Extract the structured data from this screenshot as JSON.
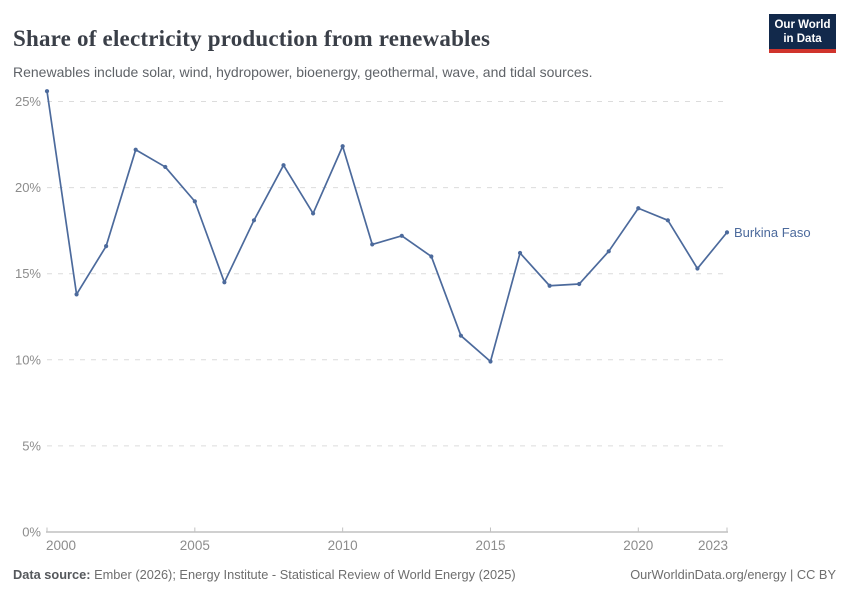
{
  "header": {
    "title": "Share of electricity production from renewables",
    "subtitle": "Renewables include solar, wind, hydropower, bioenergy, geothermal, wave, and tidal sources.",
    "logo": {
      "line1": "Our World",
      "line2": "in Data",
      "bg_color": "#12294b",
      "stripe_color": "#d0342c"
    }
  },
  "chart_data": {
    "type": "line",
    "title": "Share of electricity production from renewables",
    "xlabel": "",
    "ylabel": "",
    "xlim": [
      2000,
      2023
    ],
    "ylim": [
      0,
      26
    ],
    "grid": "horizontal-dashed",
    "legend_position": "end-of-line-label",
    "x_ticks": [
      2000,
      2005,
      2010,
      2015,
      2020,
      2023
    ],
    "y_ticks": [
      0,
      5,
      10,
      15,
      20,
      25
    ],
    "y_tick_labels": [
      "0%",
      "5%",
      "10%",
      "15%",
      "20%",
      "25%"
    ],
    "x": [
      2000,
      2001,
      2002,
      2003,
      2004,
      2005,
      2006,
      2007,
      2008,
      2009,
      2010,
      2011,
      2012,
      2013,
      2014,
      2015,
      2016,
      2017,
      2018,
      2019,
      2020,
      2021,
      2022,
      2023
    ],
    "series": [
      {
        "name": "Burkina Faso",
        "color": "#4c6a9c",
        "values": [
          25.6,
          13.8,
          16.6,
          22.2,
          21.2,
          19.2,
          14.5,
          18.1,
          21.3,
          18.5,
          22.4,
          16.7,
          17.2,
          16.0,
          11.4,
          9.9,
          16.2,
          14.3,
          14.4,
          16.3,
          18.8,
          18.1,
          15.3,
          17.4
        ]
      }
    ],
    "colors": {
      "gridline": "#dcdcdc",
      "axis_line": "#a0a0a0",
      "axis_tick": "#c2c2c2",
      "tick_label": "#8c8c8c"
    }
  },
  "footer": {
    "datasource_label": "Data source:",
    "datasource_text": " Ember (2026); Energy Institute - Statistical Review of World Energy (2025)",
    "right_text": "OurWorldinData.org/energy | CC BY"
  }
}
